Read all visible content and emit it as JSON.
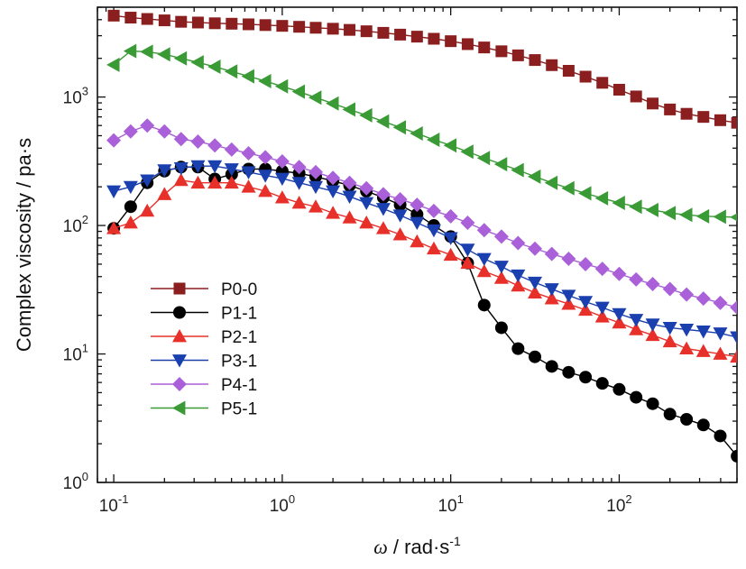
{
  "chart_data": {
    "type": "line",
    "xlabel": {
      "symbol": "ω",
      "rest": " / rad·s",
      "sup": "-1"
    },
    "ylabel": "Complex viscosity / pa·s",
    "x_scale": "log",
    "y_scale": "log",
    "xlim": [
      0.08,
      500
    ],
    "ylim": [
      1,
      5000
    ],
    "x_ticks": [
      {
        "base": "10",
        "exp": "-1",
        "value": 0.1
      },
      {
        "base": "10",
        "exp": "0",
        "value": 1
      },
      {
        "base": "10",
        "exp": "1",
        "value": 10
      },
      {
        "base": "10",
        "exp": "2",
        "value": 100
      }
    ],
    "y_ticks": [
      {
        "base": "10",
        "exp": "0",
        "value": 1
      },
      {
        "base": "10",
        "exp": "1",
        "value": 10
      },
      {
        "base": "10",
        "exp": "2",
        "value": 100
      },
      {
        "base": "10",
        "exp": "3",
        "value": 1000
      }
    ],
    "grid": false,
    "legend_position": "bottom-left",
    "x": [
      0.1,
      0.126,
      0.158,
      0.2,
      0.251,
      0.316,
      0.398,
      0.501,
      0.631,
      0.794,
      1,
      1.26,
      1.58,
      2,
      2.51,
      3.16,
      3.98,
      5.01,
      6.31,
      7.94,
      10,
      12.6,
      15.8,
      20,
      25.1,
      31.6,
      39.8,
      50.1,
      63.1,
      79.4,
      100,
      126,
      158,
      200,
      251,
      316,
      398,
      501
    ],
    "series": [
      {
        "name": "P0-0",
        "marker": "square",
        "color": "#8b1e1e",
        "values": [
          4300,
          4150,
          4050,
          3950,
          3850,
          3800,
          3750,
          3720,
          3680,
          3630,
          3580,
          3520,
          3460,
          3400,
          3330,
          3250,
          3160,
          3060,
          2950,
          2840,
          2720,
          2580,
          2430,
          2270,
          2110,
          1940,
          1770,
          1600,
          1440,
          1290,
          1140,
          1010,
          890,
          800,
          740,
          700,
          660,
          630
        ]
      },
      {
        "name": "P1-1",
        "marker": "circle",
        "color": "#000000",
        "values": [
          95,
          140,
          215,
          265,
          285,
          285,
          230,
          250,
          275,
          275,
          265,
          255,
          240,
          222,
          205,
          185,
          165,
          145,
          122,
          100,
          82,
          51,
          24,
          16,
          11,
          9.5,
          8,
          7.2,
          6.6,
          5.9,
          5.3,
          4.6,
          4.1,
          3.4,
          3.1,
          2.8,
          2.3,
          1.6
        ]
      },
      {
        "name": "P2-1",
        "marker": "triangle-up",
        "color": "#e8302a",
        "values": [
          95,
          105,
          130,
          175,
          225,
          215,
          215,
          215,
          200,
          185,
          165,
          150,
          140,
          125,
          115,
          105,
          95,
          85,
          75,
          66,
          59,
          51,
          44,
          39,
          34,
          30,
          27,
          24.5,
          22,
          19.5,
          17.5,
          15.5,
          14,
          12.5,
          11,
          10.5,
          10,
          9.5
        ]
      },
      {
        "name": "P3-1",
        "marker": "triangle-down",
        "color": "#1a3fae",
        "values": [
          185,
          200,
          225,
          270,
          280,
          290,
          290,
          275,
          260,
          245,
          232,
          215,
          200,
          185,
          168,
          150,
          135,
          120,
          105,
          92,
          80,
          65,
          55,
          48,
          41,
          36,
          32,
          28.5,
          25.5,
          23,
          20.5,
          18.5,
          17,
          16,
          15.5,
          15,
          14.5,
          13.5
        ]
      },
      {
        "name": "P4-1",
        "marker": "diamond",
        "color": "#a960d8",
        "values": [
          460,
          540,
          600,
          540,
          470,
          450,
          420,
          390,
          365,
          340,
          315,
          285,
          260,
          235,
          215,
          195,
          175,
          160,
          145,
          130,
          118,
          105,
          92,
          82,
          73,
          66,
          60,
          55,
          50,
          46,
          42,
          38,
          35,
          32,
          29,
          27,
          25,
          23
        ]
      },
      {
        "name": "P5-1",
        "marker": "triangle-left",
        "color": "#3a9a35",
        "values": [
          1780,
          2280,
          2250,
          2150,
          2000,
          1860,
          1720,
          1580,
          1450,
          1330,
          1210,
          1100,
          990,
          890,
          800,
          720,
          645,
          580,
          520,
          465,
          420,
          375,
          335,
          300,
          270,
          240,
          215,
          195,
          178,
          163,
          150,
          140,
          132,
          125,
          121,
          118,
          117,
          116
        ]
      }
    ]
  }
}
